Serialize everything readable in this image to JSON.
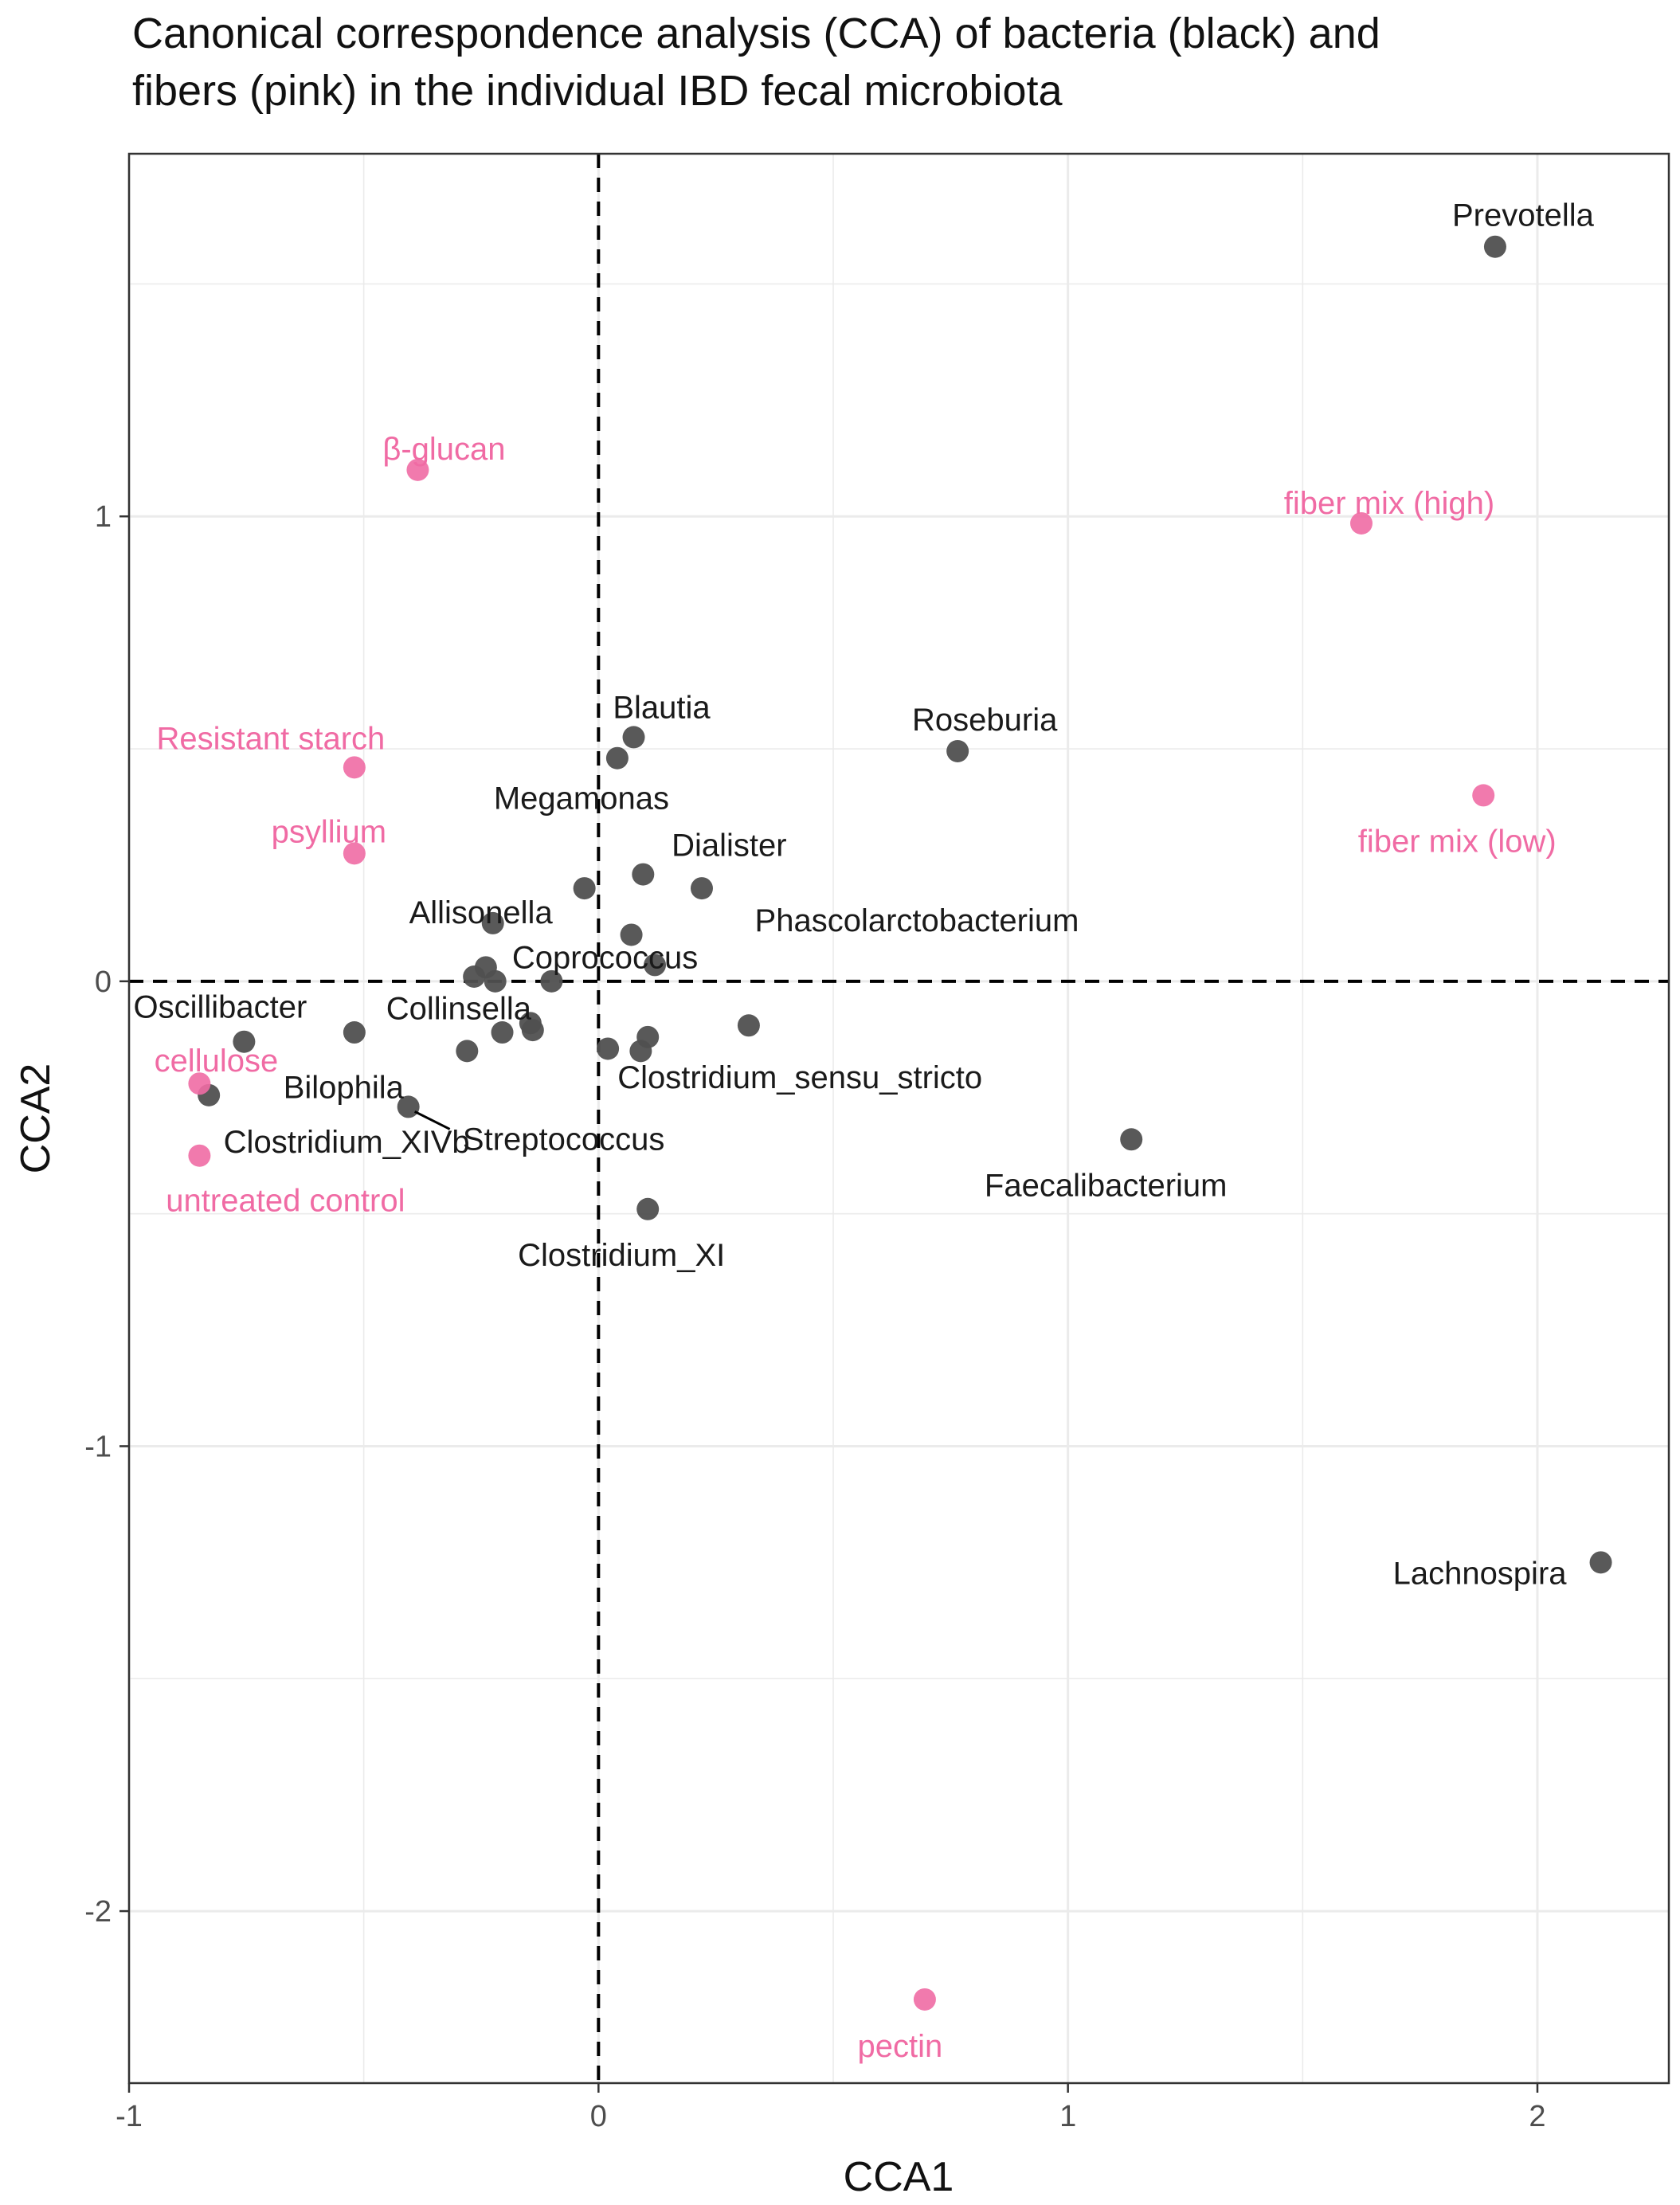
{
  "chart_data": {
    "type": "scatter",
    "title_lines": [
      "Canonical correspondence analysis (CCA) of bacteria (black) and",
      "fibers (pink) in the individual IBD fecal microbiota"
    ],
    "xlabel": "CCA1",
    "ylabel": "CCA2",
    "xlim": [
      -1,
      2.28
    ],
    "ylim": [
      -2.37,
      1.78
    ],
    "xticks": [
      -1,
      0,
      1,
      2
    ],
    "yticks": [
      -2,
      -1,
      0,
      1
    ],
    "grid": true,
    "reference_lines": {
      "x": 0,
      "y": 0,
      "style": "dashed"
    },
    "colors": {
      "bacteria": "#505050",
      "fibers": "#f06ba4",
      "axis_text": "#4d4d4d",
      "grid": "#ebebeb"
    },
    "series": [
      {
        "name": "bacteria",
        "color": "#505050",
        "points": [
          {
            "label": "Prevotella",
            "x": 1.91,
            "y": 1.58
          },
          {
            "label": "Roseburia",
            "x": 0.765,
            "y": 0.495
          },
          {
            "label": "Blautia",
            "x": 0.075,
            "y": 0.525
          },
          {
            "label": "Megamonas",
            "x": 0.04,
            "y": 0.48
          },
          {
            "label": "Dialister",
            "x": 0.095,
            "y": 0.23
          },
          {
            "label": "Phascolarctobacterium",
            "x": 0.22,
            "y": 0.2
          },
          {
            "label": "Allisonella",
            "x": -0.03,
            "y": 0.2
          },
          {
            "label": "Coprococcus",
            "x": 0.07,
            "y": 0.1
          },
          {
            "label": "",
            "x": 0.12,
            "y": 0.035
          },
          {
            "label": "",
            "x": -0.225,
            "y": 0.125
          },
          {
            "label": "",
            "x": -0.24,
            "y": 0.03
          },
          {
            "label": "",
            "x": -0.265,
            "y": 0.01
          },
          {
            "label": "",
            "x": -0.22,
            "y": 0.0
          },
          {
            "label": "",
            "x": -0.1,
            "y": 0.0
          },
          {
            "label": "Oscillibacter",
            "x": -0.755,
            "y": -0.13
          },
          {
            "label": "",
            "x": -0.52,
            "y": -0.11
          },
          {
            "label": "Collinsella",
            "x": -0.145,
            "y": -0.09
          },
          {
            "label": "",
            "x": -0.14,
            "y": -0.105
          },
          {
            "label": "",
            "x": -0.205,
            "y": -0.11
          },
          {
            "label": "Bilophila",
            "x": -0.28,
            "y": -0.15
          },
          {
            "label": "Streptococcus",
            "x": -0.405,
            "y": -0.27
          },
          {
            "label": "Clostridium_XIVb",
            "x": -0.83,
            "y": -0.245
          },
          {
            "label": "Clostridium_sensu_stricto",
            "x": 0.105,
            "y": -0.12
          },
          {
            "label": "",
            "x": 0.02,
            "y": -0.145
          },
          {
            "label": "",
            "x": 0.09,
            "y": -0.15
          },
          {
            "label": "",
            "x": 0.32,
            "y": -0.095
          },
          {
            "label": "Faecalibacterium",
            "x": 1.135,
            "y": -0.34
          },
          {
            "label": "Clostridium_XI",
            "x": 0.105,
            "y": -0.49
          },
          {
            "label": "Lachnospira",
            "x": 2.135,
            "y": -1.25
          }
        ]
      },
      {
        "name": "fibers",
        "color": "#f06ba4",
        "points": [
          {
            "label": "β-glucan",
            "x": -0.385,
            "y": 1.1
          },
          {
            "label": "fiber mix (high)",
            "x": 1.625,
            "y": 0.985
          },
          {
            "label": "fiber mix (low)",
            "x": 1.885,
            "y": 0.4
          },
          {
            "label": "Resistant starch",
            "x": -0.52,
            "y": 0.46
          },
          {
            "label": "psyllium",
            "x": -0.52,
            "y": 0.275
          },
          {
            "label": "cellulose",
            "x": -0.85,
            "y": -0.22
          },
          {
            "label": "untreated control",
            "x": -0.85,
            "y": -0.375
          },
          {
            "label": "pectin",
            "x": 0.695,
            "y": -2.19
          }
        ]
      }
    ]
  }
}
